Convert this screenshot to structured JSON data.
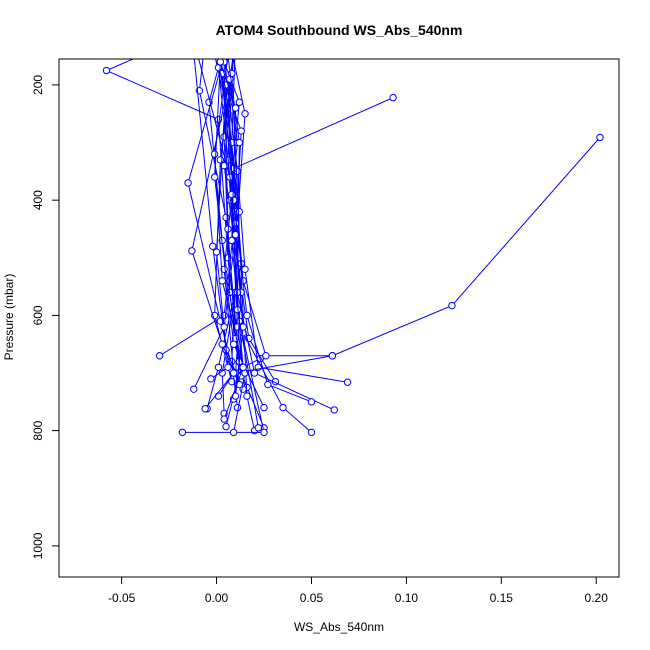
{
  "chart_data": {
    "type": "line",
    "title": "ATOM4 Southbound WS_Abs_540nm",
    "xlabel": "WS_Abs_540nm",
    "ylabel": "Pressure (mbar)",
    "xlim": [
      -0.083,
      0.212
    ],
    "ylim": [
      1054,
      155
    ],
    "y_reversed": true,
    "grid": false,
    "legend": "none",
    "x_ticks": [
      {
        "value": -0.05,
        "label": "-0.05"
      },
      {
        "value": 0.0,
        "label": "0.00"
      },
      {
        "value": 0.05,
        "label": "0.05"
      },
      {
        "value": 0.1,
        "label": "0.10"
      },
      {
        "value": 0.15,
        "label": "0.15"
      },
      {
        "value": 0.2,
        "label": "0.20"
      }
    ],
    "y_ticks": [
      {
        "value": 200,
        "label": "200"
      },
      {
        "value": 400,
        "label": "400"
      },
      {
        "value": 600,
        "label": "600"
      },
      {
        "value": 800,
        "label": "800"
      },
      {
        "value": 1000,
        "label": "1000"
      }
    ],
    "series_color": "#0000ff",
    "series": [
      {
        "x": [
          0.025,
          0.013,
          0.006,
          0.001,
          -0.058,
          -0.002,
          0.008,
          0.01,
          0.003,
          0.004
        ],
        "y": [
          795,
          700,
          500,
          260,
          175,
          95,
          300,
          560,
          700,
          770
        ]
      },
      {
        "x": [
          0.02,
          0.012,
          0.005,
          -0.009,
          -0.005,
          0.006,
          0.013,
          0.001,
          -0.005
        ],
        "y": [
          800,
          680,
          430,
          210,
          90,
          250,
          510,
          690,
          762
        ]
      },
      {
        "x": [
          -0.018,
          0.025,
          0.012,
          0.006,
          0.009,
          0.002,
          -0.001,
          0.008,
          0.016
        ],
        "y": [
          803,
          803,
          610,
          330,
          140,
          330,
          600,
          715,
          725
        ]
      },
      {
        "x": [
          -0.03,
          0.004,
          0.01,
          0.006,
          0.002,
          0.008,
          0.011,
          0.014,
          0.023
        ],
        "y": [
          670,
          600,
          420,
          220,
          160,
          360,
          620,
          690,
          675
        ]
      },
      {
        "x": [
          0.061,
          0.026,
          0.014,
          0.008,
          0.01,
          0.004,
          0.007,
          0.012,
          0.005
        ],
        "y": [
          670,
          670,
          540,
          300,
          120,
          290,
          560,
          700,
          793
        ]
      },
      {
        "x": [
          0.031,
          0.017,
          0.01,
          0.015,
          0.006,
          -0.004,
          0.003,
          0.012,
          0.009
        ],
        "y": [
          715,
          640,
          480,
          250,
          110,
          230,
          470,
          680,
          745
        ]
      },
      {
        "x": [
          0.069,
          0.022,
          0.015,
          0.011,
          0.004,
          -0.015,
          0.002,
          0.009,
          0.001
        ],
        "y": [
          716,
          690,
          520,
          350,
          150,
          370,
          610,
          700,
          740
        ]
      },
      {
        "x": [
          0.093,
          0.009,
          0.007,
          0.012,
          0.004,
          0.006,
          0.01,
          0.013
        ],
        "y": [
          222,
          345,
          400,
          230,
          160,
          450,
          640,
          705
        ]
      },
      {
        "x": [
          0.202,
          0.124,
          0.061,
          0.01,
          0.013,
          0.004,
          0.008,
          0.016
        ],
        "y": [
          291,
          583,
          670,
          700,
          560,
          340,
          180,
          740
        ]
      },
      {
        "x": [
          0.05,
          0.035,
          0.014,
          0.01,
          0.003,
          0.012,
          0.008,
          0.011
        ],
        "y": [
          803,
          760,
          630,
          440,
          180,
          420,
          680,
          760
        ]
      },
      {
        "x": [
          0.062,
          0.02,
          0.011,
          0.007,
          -0.013,
          -0.002,
          0.005,
          0.014
        ],
        "y": [
          764,
          700,
          560,
          360,
          110,
          480,
          660,
          728
        ]
      },
      {
        "x": [
          0.05,
          0.027,
          0.016,
          0.009,
          0.005,
          0.0,
          0.006,
          -0.003
        ],
        "y": [
          750,
          720,
          600,
          400,
          200,
          490,
          690,
          710
        ]
      },
      {
        "x": [
          -0.006,
          0.009,
          0.004,
          0.011,
          0.007,
          -0.013,
          0.003,
          0.012
        ],
        "y": [
          762,
          700,
          520,
          300,
          190,
          488,
          650,
          720
        ]
      },
      {
        "x": [
          -0.012,
          0.004,
          0.01,
          0.013,
          0.001,
          0.008,
          0.014,
          0.01
        ],
        "y": [
          728,
          620,
          460,
          280,
          170,
          390,
          620,
          740
        ]
      },
      {
        "x": [
          0.009,
          0.015,
          0.003,
          -0.001,
          0.006,
          0.012,
          0.011,
          0.022
        ],
        "y": [
          803,
          700,
          540,
          320,
          150,
          300,
          590,
          795
        ]
      },
      {
        "x": [
          0.004,
          0.014,
          0.008,
          0.01,
          0.002,
          -0.001,
          0.009,
          0.025
        ],
        "y": [
          780,
          690,
          470,
          240,
          160,
          360,
          650,
          760
        ]
      }
    ]
  }
}
